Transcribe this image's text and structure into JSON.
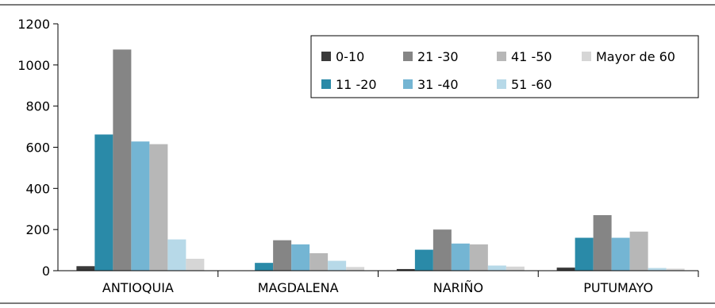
{
  "chart_data": {
    "type": "bar",
    "title": "",
    "xlabel": "",
    "ylabel": "",
    "ylim": [
      0,
      1200
    ],
    "yticks": [
      0,
      200,
      400,
      600,
      800,
      1000,
      1200
    ],
    "grid": false,
    "legend_position": "top-right",
    "categories": [
      "ANTIOQUIA",
      "MAGDALENA",
      "NARIÑO",
      "PUTUMAYO"
    ],
    "series": [
      {
        "name": "0-10",
        "color": "#3a3a3a",
        "values": [
          22,
          0,
          8,
          15
        ]
      },
      {
        "name": "11 -20",
        "color": "#2a8aa8",
        "values": [
          662,
          38,
          102,
          160
        ]
      },
      {
        "name": "21 -30",
        "color": "#858585",
        "values": [
          1075,
          148,
          200,
          270
        ]
      },
      {
        "name": "31 -40",
        "color": "#74b5d3",
        "values": [
          628,
          128,
          132,
          160
        ]
      },
      {
        "name": "41 -50",
        "color": "#b7b7b7",
        "values": [
          615,
          85,
          128,
          190
        ]
      },
      {
        "name": "51 -60",
        "color": "#b7d9e8",
        "values": [
          152,
          48,
          25,
          13
        ]
      },
      {
        "name": "Mayor de 60",
        "color": "#d6d6d6",
        "values": [
          58,
          18,
          20,
          10
        ]
      }
    ]
  }
}
